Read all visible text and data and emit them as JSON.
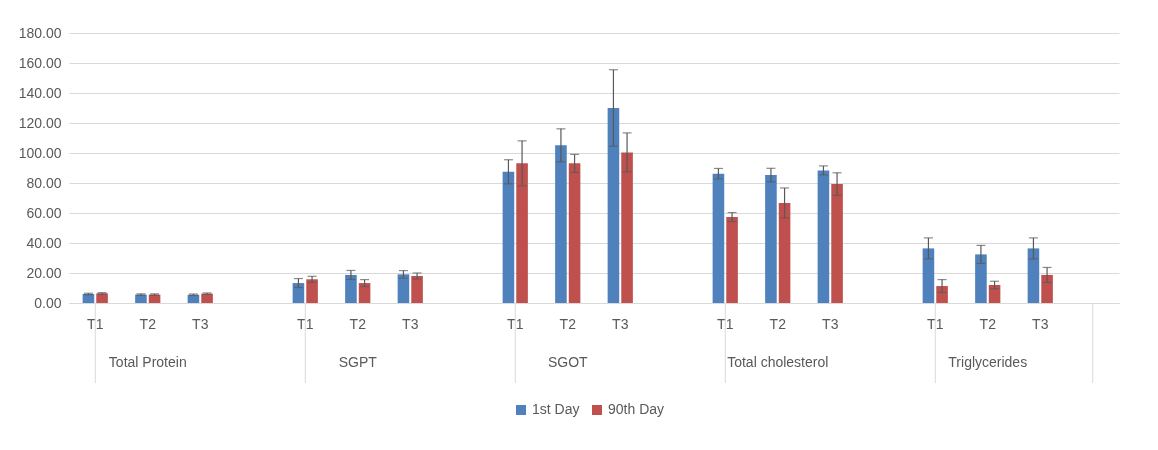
{
  "chart_data": {
    "type": "bar",
    "categories": [
      "T1",
      "T2",
      "T3",
      null,
      "T1",
      "T2",
      "T3",
      null,
      "T1",
      "T2",
      "T3",
      null,
      "T1",
      "T2",
      "T3",
      null,
      "T1",
      "T2",
      "T3",
      null
    ],
    "annotations": [
      "Total Protein",
      "SGPT",
      "SGOT",
      "Total cholesterol",
      "Triglycerides"
    ],
    "series": [
      {
        "name": "1st Day",
        "color": "#4f81bd",
        "values": [
          6.0,
          5.6,
          5.5,
          null,
          13.3,
          18.7,
          19.1,
          null,
          87.5,
          105.1,
          130.0,
          null,
          86.2,
          85.3,
          88.4,
          null,
          36.4,
          32.4,
          36.4,
          null
        ],
        "errors": [
          0.5,
          0.5,
          0.5,
          null,
          3,
          3,
          2.5,
          null,
          8,
          11,
          25.5,
          null,
          3.5,
          4.5,
          3,
          null,
          7,
          6,
          7,
          null
        ]
      },
      {
        "name": "90th Day",
        "color": "#c0504d",
        "values": [
          6.4,
          5.6,
          6.2,
          null,
          15.8,
          13.3,
          18.0,
          null,
          93.1,
          93.1,
          100.4,
          null,
          57.3,
          66.7,
          79.3,
          null,
          11.3,
          12.0,
          18.7,
          null
        ],
        "errors": [
          0.5,
          0.5,
          0.5,
          null,
          2,
          2.3,
          2,
          null,
          15,
          6,
          13,
          null,
          3,
          10,
          7.5,
          null,
          4.3,
          2.5,
          5,
          null
        ]
      }
    ],
    "ylim": [
      0,
      180
    ],
    "yticks": [
      {
        "value": 0,
        "label": "0.00"
      },
      {
        "value": 20,
        "label": "20.00"
      },
      {
        "value": 40,
        "label": "40.00"
      },
      {
        "value": 60,
        "label": "60.00"
      },
      {
        "value": 80,
        "label": "80.00"
      },
      {
        "value": 100,
        "label": "100.00"
      },
      {
        "value": 120,
        "label": "120.00"
      },
      {
        "value": 140,
        "label": "140.00"
      },
      {
        "value": 160,
        "label": "160.00"
      },
      {
        "value": 180,
        "label": "180.00"
      }
    ],
    "grid": "y",
    "legend": "bottom"
  }
}
